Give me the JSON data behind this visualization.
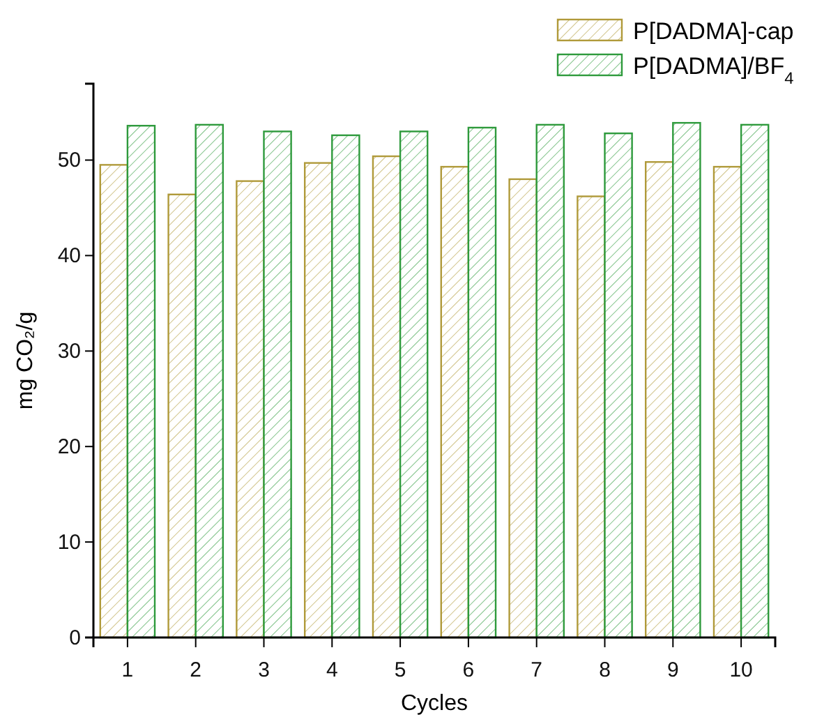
{
  "chart_data": {
    "type": "bar",
    "xlabel": "Cycles",
    "ylabel": "mg CO₂/g",
    "categories": [
      "1",
      "2",
      "3",
      "4",
      "5",
      "6",
      "7",
      "8",
      "9",
      "10"
    ],
    "series": [
      {
        "name": "P[DADMA]-cap",
        "color": "#b09a3a",
        "values": [
          49.5,
          46.4,
          47.8,
          49.7,
          50.4,
          49.3,
          48.0,
          46.2,
          49.8,
          49.3
        ]
      },
      {
        "name": "P[DADMA]/BF$_{4}$",
        "color": "#2e9a3c",
        "values": [
          53.6,
          53.7,
          53.0,
          52.6,
          53.0,
          53.4,
          53.7,
          52.8,
          53.9,
          53.7
        ]
      }
    ],
    "ylim": [
      0,
      58
    ],
    "yticks": [
      0,
      10,
      20,
      30,
      40,
      50
    ],
    "grid": false,
    "legend": "top right"
  }
}
